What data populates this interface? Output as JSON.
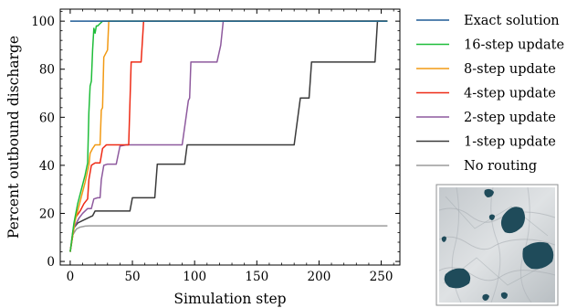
{
  "chart_data": {
    "type": "line",
    "xlabel": "Simulation step",
    "ylabel": "Percent outbound discharge",
    "xlim": [
      -8,
      265
    ],
    "ylim": [
      -1.5,
      105
    ],
    "xticks": [
      0,
      50,
      100,
      150,
      200,
      250
    ],
    "yticks": [
      0,
      20,
      40,
      60,
      80,
      100
    ],
    "grid": false,
    "legend_position": "outside-right",
    "series": [
      {
        "name": "Exact solution",
        "color": "#1f5b96",
        "x": [
          0,
          255
        ],
        "y": [
          100,
          100
        ]
      },
      {
        "name": "16-step update",
        "color": "#1fbd3a",
        "x": [
          0,
          3,
          6,
          9,
          12,
          14,
          15,
          16,
          17,
          18,
          19,
          20,
          21,
          22,
          24,
          26,
          28,
          30,
          255
        ],
        "y": [
          4,
          16,
          24,
          30,
          36,
          41,
          62,
          73,
          75,
          88,
          97,
          95,
          98,
          98,
          99,
          100,
          100,
          100,
          100
        ]
      },
      {
        "name": "8-step update",
        "color": "#f29a14",
        "x": [
          0,
          4,
          8,
          12,
          15,
          16,
          18,
          20,
          24,
          25,
          26,
          27,
          28,
          29,
          30,
          31,
          32,
          255
        ],
        "y": [
          4,
          17,
          25,
          33,
          40,
          45,
          47,
          48.5,
          48.5,
          63,
          64,
          85,
          86,
          87,
          88,
          100,
          100,
          100
        ]
      },
      {
        "name": "4-step update",
        "color": "#ee2b16",
        "x": [
          0,
          2,
          4,
          8,
          11,
          14,
          15,
          16,
          17,
          20,
          24,
          26,
          29,
          30,
          47,
          49,
          52,
          55,
          57,
          59,
          61,
          62,
          255
        ],
        "y": [
          4,
          12,
          18,
          21,
          24,
          26,
          34,
          37,
          40,
          41,
          41,
          47,
          48.5,
          48.5,
          48.5,
          83,
          83,
          83,
          83,
          100,
          100,
          100,
          100
        ]
      },
      {
        "name": "2-step update",
        "color": "#8e5a9e",
        "x": [
          0,
          3,
          7,
          10,
          12,
          14,
          17,
          19,
          22,
          24,
          25,
          27,
          30,
          32,
          34,
          37,
          40,
          45,
          50,
          60,
          90,
          95,
          96,
          97,
          98,
          100,
          110,
          118,
          121,
          123,
          124,
          255
        ],
        "y": [
          4,
          14,
          18,
          20,
          21,
          22,
          22,
          26,
          26.5,
          26.5,
          34,
          40,
          40.5,
          40.5,
          40.5,
          40.5,
          48,
          48.5,
          48.5,
          48.5,
          48.5,
          67,
          68,
          83,
          83,
          83,
          83,
          83,
          90,
          100,
          100,
          100
        ]
      },
      {
        "name": "1-step update",
        "color": "#3a3a3a",
        "x": [
          0,
          3,
          6,
          10,
          14,
          18,
          20,
          22,
          26,
          28,
          30,
          34,
          40,
          48,
          50,
          60,
          68,
          70,
          80,
          92,
          94,
          100,
          120,
          180,
          185,
          187,
          190,
          192,
          194,
          200,
          220,
          245,
          247,
          249,
          255
        ],
        "y": [
          4,
          14,
          16,
          17,
          18,
          19,
          21,
          21,
          21,
          21,
          21,
          21,
          21,
          21,
          26.5,
          26.5,
          26.5,
          40.5,
          40.5,
          40.5,
          48.5,
          48.5,
          48.5,
          48.5,
          68,
          68,
          68,
          68,
          83,
          83,
          83,
          83,
          100,
          100,
          100
        ]
      },
      {
        "name": "No routing",
        "color": "#9c9c9c",
        "x": [
          0,
          2,
          5,
          8,
          12,
          15,
          255
        ],
        "y": [
          4,
          11,
          13.5,
          14.3,
          14.7,
          14.8,
          14.8
        ]
      }
    ]
  }
}
